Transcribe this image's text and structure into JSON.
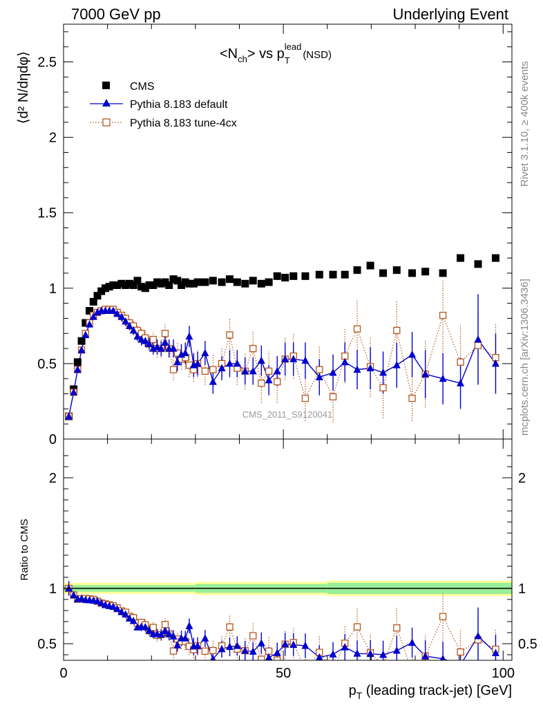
{
  "header": {
    "left": "7000 GeV pp",
    "right": "Underlying Event",
    "side_top": "Rivet 3.1.10, ≥ 400k events",
    "side_bottom": "mcplots.cern.ch [arXiv:1306.3436]"
  },
  "colors": {
    "cms": "#000000",
    "default": "#0000cc",
    "tune": "#b5541c",
    "band_yellow": "#ffff99",
    "band_green": "#99ee99"
  },
  "chart_data": [
    {
      "type": "scatter",
      "panel": "main",
      "title": "<N_ch> vs p_T^lead (NSD)",
      "title_parts": {
        "pre": "<N",
        "sub1": "ch",
        "mid": "> vs p",
        "sub2": "T",
        "sup": "lead",
        "post": "(NSD)"
      },
      "ylabel": "⟨d² N/dηdφ⟩",
      "xlabel": "",
      "xlim": [
        0,
        102
      ],
      "ylim": [
        0,
        2.75
      ],
      "yticks": [
        0,
        0.5,
        1,
        1.5,
        2,
        2.5
      ],
      "ytick_labels": [
        "0",
        "0.5",
        "1",
        "1.5",
        "2",
        "2.5"
      ],
      "xticks": [
        0,
        50,
        100
      ],
      "watermark": "CMS_2011_S9120041",
      "legend": [
        {
          "key": "cms",
          "label": "CMS",
          "marker": "filled-square"
        },
        {
          "key": "default",
          "label": "Pythia 8.183 default",
          "marker": "filled-triangle"
        },
        {
          "key": "tune",
          "label": "Pythia 8.183 tune-4cx",
          "marker": "open-square"
        }
      ],
      "series": [
        {
          "name": "CMS",
          "x": [
            1.2,
            2.3,
            3.2,
            4.1,
            5.0,
            5.9,
            6.8,
            7.7,
            8.6,
            9.5,
            10.4,
            11.3,
            12.2,
            13.2,
            14.1,
            15.0,
            15.9,
            16.8,
            17.7,
            18.6,
            19.5,
            20.4,
            21.3,
            22.2,
            23.1,
            24.0,
            25.0,
            25.9,
            26.8,
            27.7,
            28.6,
            29.6,
            30.5,
            32.2,
            34.0,
            36.0,
            37.8,
            39.5,
            41.3,
            43.1,
            45.0,
            46.7,
            48.6,
            50.4,
            52.3,
            55.0,
            58.2,
            61.3,
            64.0,
            66.8,
            69.8,
            72.7,
            75.8,
            79.3,
            82.3,
            86.3,
            90.3,
            94.3,
            98.3
          ],
          "values": [
            0.15,
            0.33,
            0.51,
            0.65,
            0.77,
            0.85,
            0.91,
            0.95,
            0.98,
            1.0,
            1.01,
            1.02,
            1.02,
            1.03,
            1.02,
            1.03,
            1.02,
            1.05,
            1.01,
            1.0,
            1.02,
            1.02,
            1.04,
            1.03,
            1.04,
            1.02,
            1.06,
            1.05,
            1.02,
            1.04,
            1.03,
            1.03,
            1.04,
            1.04,
            1.05,
            1.04,
            1.06,
            1.04,
            1.03,
            1.05,
            1.03,
            1.04,
            1.08,
            1.07,
            1.08,
            1.08,
            1.09,
            1.09,
            1.09,
            1.12,
            1.15,
            1.1,
            1.12,
            1.1,
            1.11,
            1.1,
            1.2,
            1.16,
            1.2
          ]
        },
        {
          "name": "Pythia 8.183 default",
          "x": [
            1.2,
            2.3,
            3.2,
            4.1,
            5.0,
            5.9,
            6.8,
            7.7,
            8.6,
            9.5,
            10.4,
            11.3,
            12.2,
            13.2,
            14.1,
            15.0,
            15.9,
            16.8,
            17.7,
            18.6,
            19.5,
            20.4,
            21.3,
            22.2,
            23.1,
            24.0,
            25.0,
            25.9,
            26.8,
            27.7,
            28.6,
            29.6,
            30.5,
            32.2,
            34.0,
            36.0,
            37.8,
            39.5,
            41.3,
            43.1,
            45.0,
            46.7,
            48.6,
            50.4,
            52.3,
            55.0,
            58.2,
            61.3,
            64.0,
            66.8,
            69.8,
            72.7,
            75.8,
            79.3,
            82.3,
            86.3,
            90.3,
            94.3,
            98.3
          ],
          "values": [
            0.15,
            0.31,
            0.46,
            0.59,
            0.69,
            0.76,
            0.81,
            0.84,
            0.85,
            0.85,
            0.85,
            0.85,
            0.83,
            0.81,
            0.78,
            0.75,
            0.72,
            0.68,
            0.66,
            0.65,
            0.63,
            0.6,
            0.61,
            0.6,
            0.64,
            0.6,
            0.6,
            0.51,
            0.56,
            0.57,
            0.68,
            0.49,
            0.5,
            0.57,
            0.38,
            0.47,
            0.5,
            0.5,
            0.45,
            0.45,
            0.52,
            0.39,
            0.45,
            0.53,
            0.53,
            0.52,
            0.41,
            0.44,
            0.51,
            0.46,
            0.47,
            0.44,
            0.49,
            0.56,
            0.43,
            0.4,
            0.37,
            0.66,
            0.5
          ],
          "errors": [
            0.01,
            0.01,
            0.01,
            0.01,
            0.01,
            0.01,
            0.01,
            0.01,
            0.01,
            0.01,
            0.01,
            0.02,
            0.02,
            0.03,
            0.03,
            0.03,
            0.03,
            0.03,
            0.04,
            0.04,
            0.04,
            0.04,
            0.05,
            0.05,
            0.05,
            0.06,
            0.06,
            0.06,
            0.07,
            0.07,
            0.07,
            0.08,
            0.08,
            0.08,
            0.08,
            0.08,
            0.09,
            0.09,
            0.09,
            0.09,
            0.1,
            0.1,
            0.1,
            0.11,
            0.11,
            0.12,
            0.12,
            0.12,
            0.13,
            0.13,
            0.14,
            0.14,
            0.15,
            0.15,
            0.16,
            0.17,
            0.17,
            0.3,
            0.2
          ]
        },
        {
          "name": "Pythia 8.183 tune-4cx",
          "x": [
            1.2,
            2.3,
            3.2,
            4.1,
            5.0,
            5.9,
            6.8,
            7.7,
            8.6,
            9.5,
            10.4,
            11.3,
            12.2,
            13.2,
            14.1,
            15.0,
            15.9,
            16.8,
            17.7,
            18.6,
            19.5,
            20.4,
            21.3,
            22.2,
            23.1,
            24.0,
            25.0,
            25.9,
            26.8,
            27.7,
            28.6,
            29.6,
            30.5,
            32.2,
            34.0,
            36.0,
            37.8,
            39.5,
            41.3,
            43.1,
            45.0,
            46.7,
            48.6,
            50.4,
            52.3,
            55.0,
            58.2,
            61.3,
            64.0,
            66.8,
            69.8,
            72.7,
            75.8,
            79.3,
            82.3,
            86.3,
            90.3,
            94.3,
            98.3
          ],
          "values": [
            0.15,
            0.31,
            0.46,
            0.59,
            0.7,
            0.77,
            0.82,
            0.84,
            0.85,
            0.86,
            0.86,
            0.86,
            0.84,
            0.82,
            0.8,
            0.77,
            0.75,
            0.72,
            0.7,
            0.67,
            0.63,
            0.66,
            0.6,
            0.6,
            0.7,
            0.6,
            0.46,
            0.57,
            0.53,
            0.54,
            0.49,
            0.46,
            0.5,
            0.45,
            0.46,
            0.5,
            0.69,
            0.47,
            0.45,
            0.6,
            0.37,
            0.45,
            0.38,
            0.53,
            0.55,
            0.27,
            0.46,
            0.28,
            0.55,
            0.73,
            0.48,
            0.34,
            0.72,
            0.27,
            0.43,
            0.82,
            0.51,
            0.62,
            0.54
          ],
          "errors": [
            0.01,
            0.01,
            0.01,
            0.01,
            0.01,
            0.01,
            0.01,
            0.01,
            0.01,
            0.02,
            0.02,
            0.02,
            0.02,
            0.03,
            0.03,
            0.03,
            0.04,
            0.04,
            0.04,
            0.05,
            0.05,
            0.05,
            0.06,
            0.06,
            0.06,
            0.06,
            0.07,
            0.07,
            0.07,
            0.08,
            0.08,
            0.08,
            0.09,
            0.09,
            0.1,
            0.1,
            0.11,
            0.11,
            0.12,
            0.12,
            0.13,
            0.13,
            0.14,
            0.14,
            0.15,
            0.15,
            0.16,
            0.17,
            0.18,
            0.19,
            0.2,
            0.2,
            0.2,
            0.15,
            0.22,
            0.24,
            0.25,
            0.25,
            0.22
          ]
        }
      ]
    },
    {
      "type": "scatter",
      "panel": "ratio",
      "ylabel": "Ratio to CMS",
      "xlabel": "p_T (leading track-jet) [GeV]",
      "xlabel_parts": {
        "pre": "p",
        "sub": "T",
        "post": " (leading track-jet) [GeV]"
      },
      "xlim": [
        0,
        102
      ],
      "ylim": [
        0.35,
        2.35
      ],
      "yticks": [
        0.5,
        1,
        2
      ],
      "ytick_labels": [
        "0.5",
        "1",
        "2"
      ],
      "xticks": [
        0,
        50,
        100
      ],
      "xtick_labels": [
        "0",
        "50",
        "100"
      ],
      "band_green_halfwidth": [
        0.03,
        0.04,
        0.05,
        0.06
      ],
      "band_yellow_halfwidth": [
        0.05,
        0.06,
        0.07,
        0.08
      ],
      "band_edges_x": [
        0,
        30,
        60,
        102
      ]
    }
  ]
}
